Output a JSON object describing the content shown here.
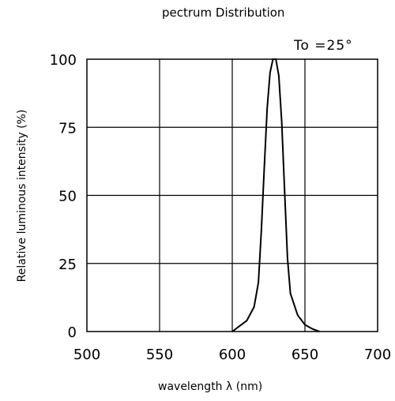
{
  "title": "pectrum Distribution",
  "annotation": "To =25°",
  "chart_data": {
    "type": "line",
    "xlabel": "wavelength λ (nm)",
    "ylabel": "Relative luminous intensity  (%)",
    "xlim": [
      500,
      700
    ],
    "ylim": [
      0,
      100
    ],
    "x_ticks": [
      "500",
      "550",
      "600",
      "650",
      "700"
    ],
    "y_ticks": [
      "0",
      "25",
      "50",
      "75",
      "100"
    ],
    "grid": true,
    "series": [
      {
        "x": [
          600,
          605,
          610,
          615,
          618,
          620,
          622,
          624,
          626,
          628,
          630,
          632,
          634,
          636,
          638,
          640,
          645,
          650,
          655,
          660
        ],
        "y": [
          0,
          2,
          4,
          9,
          18,
          37,
          60,
          82,
          95,
          100,
          100,
          94,
          77,
          52,
          27,
          14,
          6,
          2.5,
          1,
          0
        ]
      }
    ]
  }
}
